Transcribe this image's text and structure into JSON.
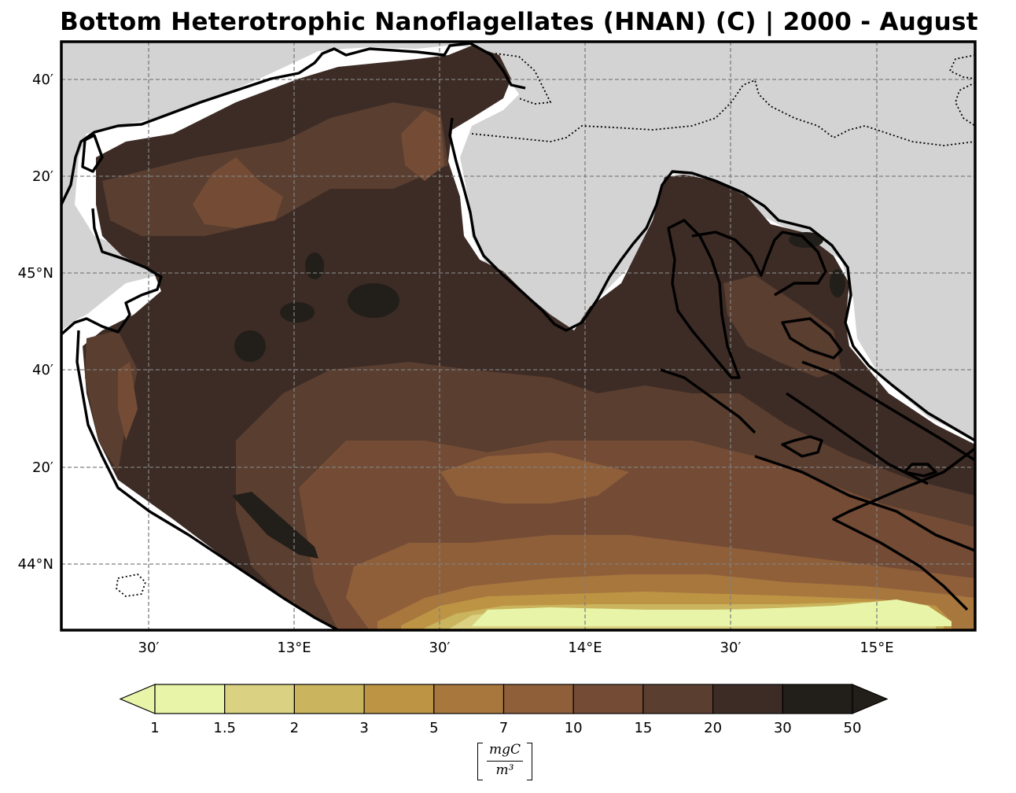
{
  "title": "Bottom Heterotrophic Nanoflagellates (HNAN) (C) | 2000 - August",
  "map": {
    "region": "Northern Adriatic Sea",
    "projection": "plate-carree",
    "extent": {
      "lon_min": 12.29,
      "lon_max": 15.6,
      "lat_min": 43.77,
      "lat_max": 45.77
    },
    "land_color": "#d3d3d3",
    "coastline_color": "#000000",
    "gridlines": "dashed",
    "lat_ticks": [
      {
        "value": 45.6667,
        "label": "40′"
      },
      {
        "value": 45.3333,
        "label": "20′"
      },
      {
        "value": 45.0,
        "label": "45°N"
      },
      {
        "value": 44.6667,
        "label": "40′"
      },
      {
        "value": 44.3333,
        "label": "20′"
      },
      {
        "value": 44.0,
        "label": "44°N"
      }
    ],
    "lon_ticks": [
      {
        "value": 12.5,
        "label": "30′"
      },
      {
        "value": 13.0,
        "label": "13°E"
      },
      {
        "value": 13.5,
        "label": "30′"
      },
      {
        "value": 14.0,
        "label": "14°E"
      },
      {
        "value": 14.5,
        "label": "30′"
      },
      {
        "value": 15.0,
        "label": "15°E"
      }
    ]
  },
  "colorbar": {
    "levels": [
      "1",
      "1.5",
      "2",
      "3",
      "5",
      "7",
      "10",
      "15",
      "20",
      "30",
      "50"
    ],
    "colors": [
      "#e8f5a8",
      "#dad282",
      "#cab45d",
      "#bd9444",
      "#a8773e",
      "#8f5f3a",
      "#744c35",
      "#5a3e30",
      "#3d2c25",
      "#221e19"
    ],
    "under_color": "#e8f5a8",
    "over_color": "#221e19",
    "extend": "both",
    "orientation": "horizontal",
    "units_numerator": "mgC",
    "units_denominator": "m³"
  }
}
